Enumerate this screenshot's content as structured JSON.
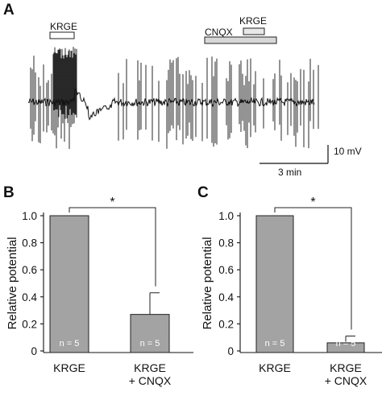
{
  "panel_a": {
    "label": "A",
    "bars": [
      {
        "text": "KRGE"
      },
      {
        "text": "CNQX"
      },
      {
        "text": "KRGE"
      }
    ],
    "scale_voltage": "10 mV",
    "scale_time": "3 min"
  },
  "chart_data": [
    {
      "type": "bar",
      "panel": "B",
      "categories": [
        "KRGE",
        "KRGE\n+ CNQX"
      ],
      "values": [
        1.0,
        0.27
      ],
      "errors": [
        0,
        0.16
      ],
      "n_labels": [
        "n = 5",
        "n = 5"
      ],
      "ylabel": "Relative potential",
      "ylim": [
        0,
        1.0
      ],
      "yticks": [
        "0",
        "0.2",
        "0.4",
        "0.6",
        "0.8",
        "1.0"
      ],
      "significance": "*",
      "bar_color": "#a3a3a3"
    },
    {
      "type": "bar",
      "panel": "C",
      "categories": [
        "KRGE",
        "KRGE\n+ CNQX"
      ],
      "values": [
        1.0,
        0.06
      ],
      "errors": [
        0,
        0.05
      ],
      "n_labels": [
        "n = 5",
        "n = 5"
      ],
      "ylabel": "Relative potential",
      "ylim": [
        0,
        1.0
      ],
      "yticks": [
        "0",
        "0.2",
        "0.4",
        "0.6",
        "0.8",
        "1.0"
      ],
      "significance": "*",
      "bar_color": "#a3a3a3"
    }
  ]
}
